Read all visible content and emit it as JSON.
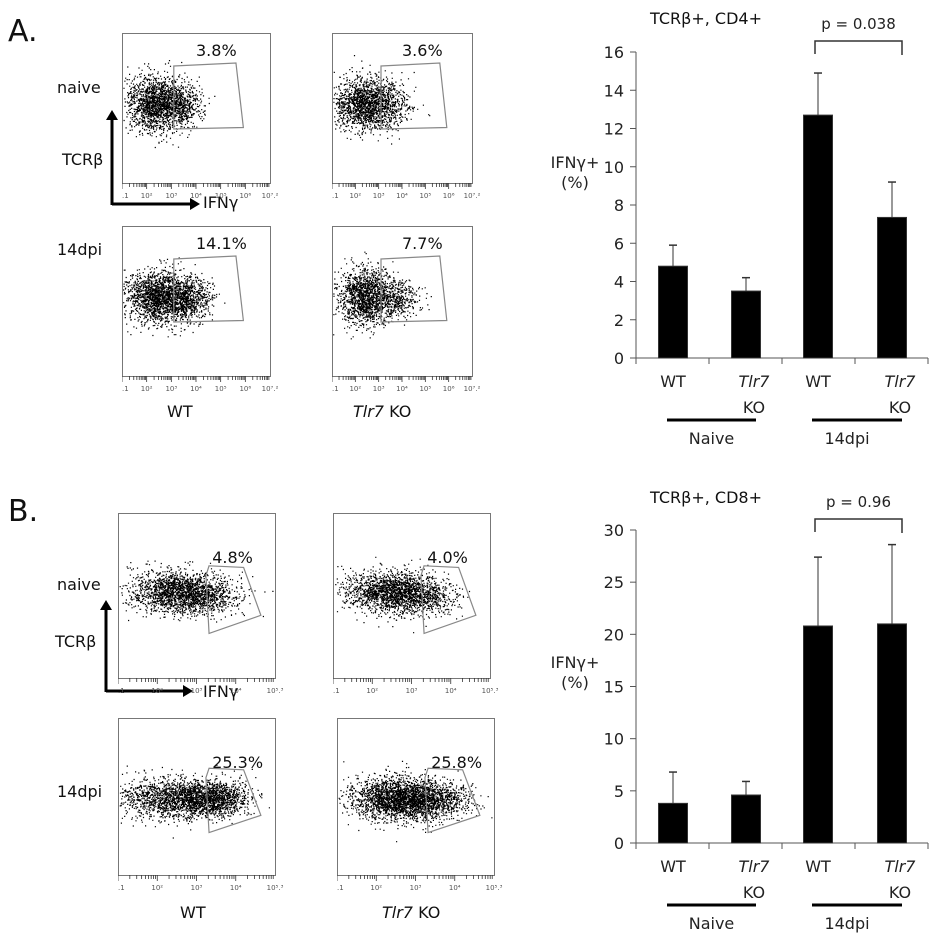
{
  "panels": [
    {
      "letter": "A.",
      "facs": {
        "row_labels": [
          "naive",
          "14dpi"
        ],
        "column_labels": [
          {
            "italic": "",
            "text": "WT"
          },
          {
            "italic": "Tlr7",
            "text": " KO"
          }
        ],
        "y_axis_label": "TCRβ",
        "x_axis_label": "IFNγ",
        "x_tick_labels": [
          ".1",
          "10²",
          "10³",
          "10⁴",
          "10⁵",
          "10⁶",
          "10⁷.²"
        ],
        "gate_percentages": [
          [
            "3.8%",
            "3.6%"
          ],
          [
            "14.1%",
            "7.7%"
          ]
        ]
      }
    },
    {
      "letter": "B.",
      "facs": {
        "row_labels": [
          "naive",
          "14dpi"
        ],
        "column_labels": [
          {
            "italic": "",
            "text": "WT"
          },
          {
            "italic": "Tlr7",
            "text": " KO"
          }
        ],
        "y_axis_label": "TCRβ",
        "x_axis_label": "IFNγ",
        "x_tick_labels": [
          ".1",
          "10²",
          "10³",
          "10⁴",
          "10⁵.³"
        ],
        "gate_percentages": [
          [
            "4.8%",
            "4.0%"
          ],
          [
            "25.3%",
            "25.8%"
          ]
        ]
      }
    }
  ],
  "chart_data": [
    {
      "type": "bar",
      "title": "TCRβ+, CD4+",
      "ylabel": "IFNγ+ (%)",
      "xlabel": "",
      "categories": [
        "WT",
        "Tlr7 KO",
        "WT",
        "Tlr7 KO"
      ],
      "category_lines": [
        [
          "WT"
        ],
        [
          "Tlr7",
          "KO"
        ],
        [
          "WT"
        ],
        [
          "Tlr7",
          "KO"
        ]
      ],
      "groups": [
        {
          "label": "Naive",
          "members": [
            0,
            1
          ]
        },
        {
          "label": "14dpi",
          "members": [
            2,
            3
          ]
        }
      ],
      "values": [
        4.8,
        3.5,
        12.7,
        7.35
      ],
      "error_upper": [
        5.9,
        4.2,
        14.9,
        9.2
      ],
      "ylim": [
        0,
        16
      ],
      "yticks": [
        0,
        2,
        4,
        6,
        8,
        10,
        12,
        14,
        16
      ],
      "grid": false,
      "annotation": {
        "text": "p = 0.038",
        "between": [
          2,
          3
        ]
      },
      "bar_color": "#000000"
    },
    {
      "type": "bar",
      "title": "TCRβ+, CD8+",
      "ylabel": "IFNγ+ (%)",
      "xlabel": "",
      "categories": [
        "WT",
        "Tlr7 KO",
        "WT",
        "Tlr7 KO"
      ],
      "category_lines": [
        [
          "WT"
        ],
        [
          "Tlr7",
          "KO"
        ],
        [
          "WT"
        ],
        [
          "Tlr7",
          "KO"
        ]
      ],
      "groups": [
        {
          "label": "Naive",
          "members": [
            0,
            1
          ]
        },
        {
          "label": "14dpi",
          "members": [
            2,
            3
          ]
        }
      ],
      "values": [
        3.8,
        4.6,
        20.8,
        21.0
      ],
      "error_upper": [
        6.8,
        5.9,
        27.4,
        28.6
      ],
      "ylim": [
        0,
        30
      ],
      "yticks": [
        0,
        5,
        10,
        15,
        20,
        25,
        30
      ],
      "grid": false,
      "annotation": {
        "text": "p = 0.96",
        "between": [
          2,
          3
        ]
      },
      "bar_color": "#000000"
    }
  ]
}
